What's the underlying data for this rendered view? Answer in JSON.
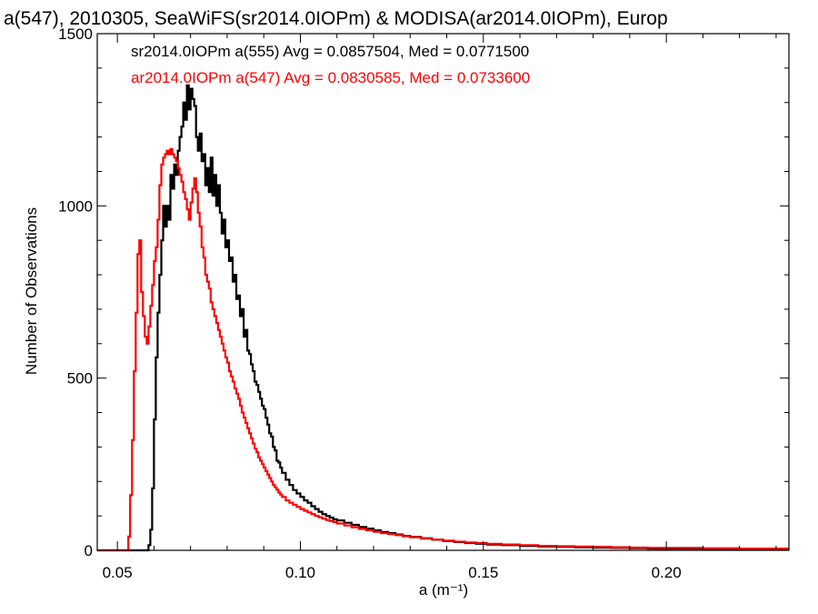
{
  "chart_data": {
    "type": "line",
    "title": "a(547), 2010305, SeaWiFS(sr2014.0IOPm) & MODISA(ar2014.0IOPm), Europ",
    "xlabel": "a (m⁻¹)",
    "ylabel": "Number of Observations",
    "xlim": [
      0.0445,
      0.2335
    ],
    "ylim": [
      0,
      1500
    ],
    "xticks": [
      0.05,
      0.1,
      0.15,
      0.2
    ],
    "xtick_labels": [
      "0.05",
      "0.10",
      "0.15",
      "0.20"
    ],
    "yticks": [
      0,
      500,
      1000,
      1500
    ],
    "ytick_labels": [
      "0",
      "500",
      "1000",
      "1500"
    ],
    "grid": false,
    "legend_position": "top-left",
    "series": [
      {
        "name": "sr2014.0IOPm a(555) Avg = 0.0857504, Med = 0.0771500",
        "color": "#000000",
        "style": "step",
        "points": [
          [
            0.0445,
            0
          ],
          [
            0.058,
            0
          ],
          [
            0.0585,
            15
          ],
          [
            0.059,
            60
          ],
          [
            0.0595,
            180
          ],
          [
            0.06,
            380
          ],
          [
            0.0605,
            560
          ],
          [
            0.061,
            690
          ],
          [
            0.0615,
            800
          ],
          [
            0.062,
            900
          ],
          [
            0.0625,
            1000
          ],
          [
            0.063,
            940
          ],
          [
            0.0635,
            1000
          ],
          [
            0.064,
            960
          ],
          [
            0.0645,
            1090
          ],
          [
            0.065,
            1050
          ],
          [
            0.0655,
            1120
          ],
          [
            0.066,
            1090
          ],
          [
            0.0665,
            1160
          ],
          [
            0.067,
            1200
          ],
          [
            0.0675,
            1230
          ],
          [
            0.068,
            1300
          ],
          [
            0.0685,
            1250
          ],
          [
            0.069,
            1350
          ],
          [
            0.0695,
            1280
          ],
          [
            0.07,
            1340
          ],
          [
            0.0705,
            1310
          ],
          [
            0.071,
            1290
          ],
          [
            0.0715,
            1200
          ],
          [
            0.072,
            1160
          ],
          [
            0.0725,
            1210
          ],
          [
            0.073,
            1130
          ],
          [
            0.0735,
            1150
          ],
          [
            0.074,
            1060
          ],
          [
            0.0745,
            1110
          ],
          [
            0.075,
            1040
          ],
          [
            0.0755,
            1140
          ],
          [
            0.076,
            1030
          ],
          [
            0.0765,
            1090
          ],
          [
            0.077,
            1000
          ],
          [
            0.0775,
            1060
          ],
          [
            0.078,
            980
          ],
          [
            0.0785,
            920
          ],
          [
            0.079,
            960
          ],
          [
            0.0795,
            880
          ],
          [
            0.08,
            900
          ],
          [
            0.0805,
            840
          ],
          [
            0.081,
            850
          ],
          [
            0.0815,
            780
          ],
          [
            0.082,
            800
          ],
          [
            0.0825,
            730
          ],
          [
            0.083,
            740
          ],
          [
            0.0835,
            680
          ],
          [
            0.084,
            700
          ],
          [
            0.0845,
            620
          ],
          [
            0.085,
            640
          ],
          [
            0.0855,
            580
          ],
          [
            0.086,
            570
          ],
          [
            0.0865,
            540
          ],
          [
            0.087,
            520
          ],
          [
            0.0875,
            490
          ],
          [
            0.088,
            480
          ],
          [
            0.0885,
            460
          ],
          [
            0.089,
            440
          ],
          [
            0.0895,
            420
          ],
          [
            0.09,
            410
          ],
          [
            0.0905,
            385
          ],
          [
            0.091,
            365
          ],
          [
            0.0915,
            340
          ],
          [
            0.092,
            330
          ],
          [
            0.0925,
            300
          ],
          [
            0.093,
            290
          ],
          [
            0.0935,
            260
          ],
          [
            0.094,
            255
          ],
          [
            0.0945,
            240
          ],
          [
            0.095,
            225
          ],
          [
            0.096,
            205
          ],
          [
            0.097,
            190
          ],
          [
            0.098,
            175
          ],
          [
            0.099,
            165
          ],
          [
            0.1,
            155
          ],
          [
            0.101,
            145
          ],
          [
            0.102,
            138
          ],
          [
            0.103,
            128
          ],
          [
            0.104,
            120
          ],
          [
            0.105,
            112
          ],
          [
            0.106,
            105
          ],
          [
            0.107,
            100
          ],
          [
            0.108,
            95
          ],
          [
            0.109,
            90
          ],
          [
            0.11,
            87
          ],
          [
            0.112,
            80
          ],
          [
            0.114,
            74
          ],
          [
            0.116,
            68
          ],
          [
            0.118,
            63
          ],
          [
            0.12,
            58
          ],
          [
            0.122,
            53
          ],
          [
            0.124,
            50
          ],
          [
            0.126,
            46
          ],
          [
            0.128,
            42
          ],
          [
            0.13,
            39
          ],
          [
            0.133,
            35
          ],
          [
            0.136,
            31
          ],
          [
            0.139,
            27
          ],
          [
            0.142,
            24
          ],
          [
            0.145,
            21
          ],
          [
            0.148,
            19
          ],
          [
            0.151,
            17
          ],
          [
            0.155,
            15
          ],
          [
            0.16,
            13
          ],
          [
            0.165,
            11
          ],
          [
            0.17,
            10
          ],
          [
            0.175,
            9
          ],
          [
            0.18,
            8
          ],
          [
            0.185,
            7
          ],
          [
            0.19,
            6
          ],
          [
            0.195,
            5
          ],
          [
            0.2,
            5
          ],
          [
            0.21,
            4
          ],
          [
            0.22,
            3
          ],
          [
            0.2335,
            3
          ]
        ]
      },
      {
        "name": "ar2014.0IOPm a(547) Avg = 0.0830585, Med = 0.0733600",
        "color": "#ff0000",
        "style": "step",
        "points": [
          [
            0.0445,
            0
          ],
          [
            0.0525,
            0
          ],
          [
            0.053,
            40
          ],
          [
            0.0535,
            160
          ],
          [
            0.054,
            320
          ],
          [
            0.0545,
            520
          ],
          [
            0.055,
            690
          ],
          [
            0.0555,
            860
          ],
          [
            0.056,
            900
          ],
          [
            0.0565,
            750
          ],
          [
            0.057,
            680
          ],
          [
            0.0575,
            620
          ],
          [
            0.058,
            600
          ],
          [
            0.0585,
            650
          ],
          [
            0.059,
            710
          ],
          [
            0.0595,
            770
          ],
          [
            0.06,
            840
          ],
          [
            0.0605,
            880
          ],
          [
            0.061,
            960
          ],
          [
            0.0615,
            1060
          ],
          [
            0.062,
            1120
          ],
          [
            0.0625,
            1140
          ],
          [
            0.063,
            1150
          ],
          [
            0.0635,
            1160
          ],
          [
            0.064,
            1150
          ],
          [
            0.0645,
            1165
          ],
          [
            0.065,
            1150
          ],
          [
            0.0655,
            1140
          ],
          [
            0.066,
            1130
          ],
          [
            0.0665,
            1110
          ],
          [
            0.067,
            1090
          ],
          [
            0.0675,
            1070
          ],
          [
            0.068,
            1040
          ],
          [
            0.0685,
            1020
          ],
          [
            0.069,
            990
          ],
          [
            0.0695,
            960
          ],
          [
            0.07,
            1010
          ],
          [
            0.0705,
            1050
          ],
          [
            0.071,
            1080
          ],
          [
            0.0715,
            1040
          ],
          [
            0.072,
            980
          ],
          [
            0.0725,
            940
          ],
          [
            0.073,
            880
          ],
          [
            0.0735,
            850
          ],
          [
            0.074,
            800
          ],
          [
            0.0745,
            780
          ],
          [
            0.075,
            760
          ],
          [
            0.0755,
            720
          ],
          [
            0.076,
            700
          ],
          [
            0.0765,
            680
          ],
          [
            0.077,
            660
          ],
          [
            0.0775,
            640
          ],
          [
            0.078,
            620
          ],
          [
            0.0785,
            600
          ],
          [
            0.079,
            580
          ],
          [
            0.0795,
            560
          ],
          [
            0.08,
            545
          ],
          [
            0.0805,
            520
          ],
          [
            0.081,
            505
          ],
          [
            0.0815,
            490
          ],
          [
            0.082,
            470
          ],
          [
            0.0825,
            455
          ],
          [
            0.083,
            440
          ],
          [
            0.0835,
            420
          ],
          [
            0.084,
            400
          ],
          [
            0.0845,
            385
          ],
          [
            0.085,
            370
          ],
          [
            0.0855,
            355
          ],
          [
            0.086,
            340
          ],
          [
            0.0865,
            325
          ],
          [
            0.087,
            310
          ],
          [
            0.0875,
            295
          ],
          [
            0.088,
            285
          ],
          [
            0.0885,
            270
          ],
          [
            0.089,
            260
          ],
          [
            0.0895,
            250
          ],
          [
            0.09,
            240
          ],
          [
            0.0905,
            230
          ],
          [
            0.091,
            220
          ],
          [
            0.0915,
            210
          ],
          [
            0.092,
            200
          ],
          [
            0.0925,
            190
          ],
          [
            0.093,
            183
          ],
          [
            0.0935,
            176
          ],
          [
            0.094,
            168
          ],
          [
            0.0945,
            162
          ],
          [
            0.095,
            155
          ],
          [
            0.096,
            145
          ],
          [
            0.097,
            138
          ],
          [
            0.098,
            132
          ],
          [
            0.099,
            126
          ],
          [
            0.1,
            120
          ],
          [
            0.101,
            115
          ],
          [
            0.102,
            110
          ],
          [
            0.103,
            105
          ],
          [
            0.104,
            100
          ],
          [
            0.105,
            96
          ],
          [
            0.106,
            92
          ],
          [
            0.107,
            88
          ],
          [
            0.108,
            85
          ],
          [
            0.109,
            82
          ],
          [
            0.11,
            78
          ],
          [
            0.112,
            72
          ],
          [
            0.114,
            67
          ],
          [
            0.116,
            62
          ],
          [
            0.118,
            58
          ],
          [
            0.12,
            54
          ],
          [
            0.122,
            50
          ],
          [
            0.124,
            47
          ],
          [
            0.126,
            44
          ],
          [
            0.128,
            41
          ],
          [
            0.13,
            38
          ],
          [
            0.133,
            34
          ],
          [
            0.136,
            31
          ],
          [
            0.139,
            28
          ],
          [
            0.142,
            25
          ],
          [
            0.145,
            23
          ],
          [
            0.148,
            21
          ],
          [
            0.151,
            19
          ],
          [
            0.155,
            17
          ],
          [
            0.16,
            15
          ],
          [
            0.165,
            13
          ],
          [
            0.17,
            12
          ],
          [
            0.175,
            11
          ],
          [
            0.18,
            10
          ],
          [
            0.185,
            9
          ],
          [
            0.19,
            8
          ],
          [
            0.195,
            7
          ],
          [
            0.2,
            7
          ],
          [
            0.21,
            6
          ],
          [
            0.22,
            5
          ],
          [
            0.2335,
            5
          ]
        ]
      }
    ]
  }
}
